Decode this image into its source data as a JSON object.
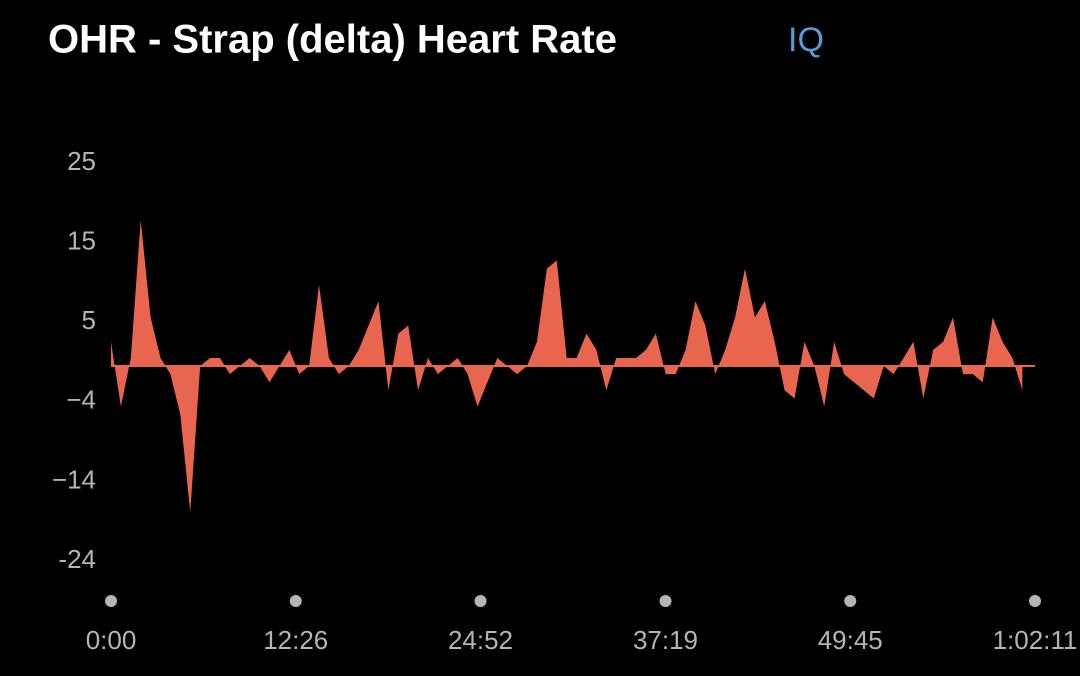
{
  "chart_data": {
    "type": "area",
    "title": "OHR - Strap (delta) Heart Rate",
    "badge": "IQ",
    "x": [
      0,
      40,
      80,
      120,
      160,
      200,
      240,
      280,
      320,
      360,
      400,
      440,
      480,
      520,
      560,
      600,
      640,
      680,
      720,
      760,
      800,
      840,
      880,
      920,
      960,
      1000,
      1040,
      1080,
      1120,
      1160,
      1200,
      1240,
      1280,
      1320,
      1360,
      1400,
      1440,
      1480,
      1520,
      1560,
      1600,
      1640,
      1680,
      1720,
      1760,
      1800,
      1840,
      1880,
      1920,
      1960,
      2000,
      2040,
      2080,
      2120,
      2160,
      2200,
      2240,
      2280,
      2320,
      2360,
      2400,
      2440,
      2480,
      2520,
      2560,
      2600,
      2640,
      2680,
      2720,
      2760,
      2800,
      2840,
      2880,
      2920,
      2960,
      3000,
      3040,
      3080,
      3120,
      3160,
      3200,
      3240,
      3280,
      3320,
      3360,
      3400,
      3440,
      3480,
      3520,
      3560,
      3600,
      3640,
      3680
    ],
    "series": [
      {
        "color": "#e8654f",
        "values": [
          3,
          -5,
          1,
          18,
          6,
          1,
          -1,
          -6,
          -18,
          0,
          1,
          1,
          -1,
          0,
          1,
          0,
          -2,
          0,
          2,
          -1,
          0,
          10,
          1,
          -1,
          0,
          2,
          5,
          8,
          -3,
          4,
          5,
          -3,
          1,
          -1,
          0,
          1,
          -1,
          -5,
          -2,
          1,
          0,
          -1,
          0,
          3,
          12,
          13,
          1,
          1,
          4,
          2,
          -3,
          1,
          1,
          1,
          2,
          4,
          -1,
          -1,
          2,
          8,
          5,
          -1,
          2,
          6,
          12,
          6,
          8,
          3,
          -3,
          -4,
          3,
          0,
          -5,
          3,
          -1,
          -2,
          -3,
          -4,
          0,
          -1,
          1,
          3,
          -4,
          2,
          3,
          6,
          -1,
          -1,
          -2,
          6,
          3,
          1,
          -3
        ]
      }
    ],
    "xlim": [
      0,
      3731
    ],
    "xticks": [
      {
        "value": 0,
        "label": "0:00"
      },
      {
        "value": 746,
        "label": "12:26"
      },
      {
        "value": 1492,
        "label": "24:52"
      },
      {
        "value": 2239,
        "label": "37:19"
      },
      {
        "value": 2985,
        "label": "49:45"
      },
      {
        "value": 3731,
        "label": "1:02:11"
      }
    ],
    "ylim": [
      -24,
      25
    ],
    "yticks": [
      25,
      {
        "value": 15.2,
        "label": "15"
      },
      {
        "value": 5.4,
        "label": "5"
      },
      {
        "value": -4.4,
        "label": "−4"
      },
      {
        "value": -14.2,
        "label": "−14"
      },
      -24
    ]
  }
}
